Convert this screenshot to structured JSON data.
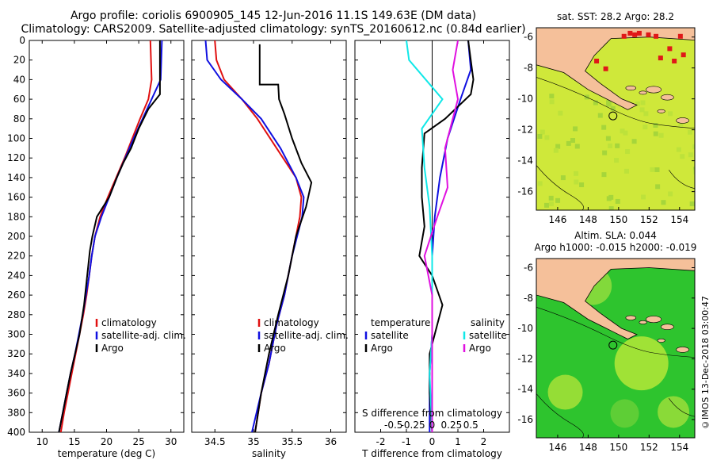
{
  "title_line1": "Argo profile: coriolis 6900905_145 12-Jun-2016 11.1S 149.63E (DM data)",
  "title_line2": "Climatology: CARS2009. Satellite-adjusted climatology: synTS_20160612.nc (0.84d earlier)",
  "colors": {
    "clim": "#e01010",
    "sat": "#1010e0",
    "argo": "#000000",
    "sat_salt": "#10e8e8",
    "argo_salt": "#e010e0",
    "land": "#f5c09a",
    "sea_sst": "#cfe83a",
    "sea_sla": "#2ec42e"
  },
  "chart_data": [
    {
      "type": "line",
      "name": "temperature",
      "xlabel": "temperature (deg C)",
      "ylabel": "",
      "xlim": [
        8,
        32
      ],
      "ylim": [
        400,
        0
      ],
      "xticks": [
        10,
        15,
        20,
        25,
        30
      ],
      "yticks": [
        0,
        20,
        40,
        60,
        80,
        100,
        120,
        140,
        160,
        180,
        200,
        220,
        240,
        260,
        280,
        300,
        320,
        340,
        360,
        380,
        400
      ],
      "legend": [
        "climatology",
        "satellite-adj. clim.",
        "Argo"
      ],
      "series": [
        {
          "name": "climatology",
          "color": "clim",
          "points": [
            [
              26.8,
              0
            ],
            [
              26.9,
              20
            ],
            [
              27.0,
              40
            ],
            [
              26.5,
              60
            ],
            [
              25.2,
              80
            ],
            [
              24.0,
              100
            ],
            [
              22.8,
              120
            ],
            [
              21.5,
              140
            ],
            [
              20.2,
              160
            ],
            [
              19.0,
              180
            ],
            [
              18.2,
              200
            ],
            [
              17.7,
              220
            ],
            [
              17.3,
              240
            ],
            [
              16.9,
              260
            ],
            [
              16.4,
              280
            ],
            [
              15.8,
              300
            ],
            [
              15.2,
              320
            ],
            [
              14.6,
              340
            ],
            [
              14.0,
              360
            ],
            [
              13.4,
              380
            ],
            [
              12.9,
              400
            ]
          ]
        },
        {
          "name": "satellite-adj. clim.",
          "color": "sat",
          "points": [
            [
              28.6,
              0
            ],
            [
              28.5,
              20
            ],
            [
              28.4,
              40
            ],
            [
              27.0,
              60
            ],
            [
              25.6,
              80
            ],
            [
              24.2,
              100
            ],
            [
              22.9,
              120
            ],
            [
              21.6,
              140
            ],
            [
              20.4,
              160
            ],
            [
              19.2,
              180
            ],
            [
              18.2,
              200
            ],
            [
              17.7,
              220
            ],
            [
              17.3,
              240
            ],
            [
              16.8,
              260
            ],
            [
              16.3,
              280
            ],
            [
              15.7,
              300
            ],
            [
              15.1,
              320
            ],
            [
              14.4,
              340
            ],
            [
              13.8,
              360
            ],
            [
              13.2,
              380
            ],
            [
              12.6,
              400
            ]
          ]
        },
        {
          "name": "Argo",
          "color": "argo",
          "points": [
            [
              28.3,
              0
            ],
            [
              28.3,
              20
            ],
            [
              28.3,
              40
            ],
            [
              28.3,
              55
            ],
            [
              26.5,
              70
            ],
            [
              25.0,
              90
            ],
            [
              23.8,
              110
            ],
            [
              22.6,
              125
            ],
            [
              21.6,
              140
            ],
            [
              20.4,
              160
            ],
            [
              18.5,
              180
            ],
            [
              17.8,
              200
            ],
            [
              17.4,
              215
            ],
            [
              17.0,
              240
            ],
            [
              16.5,
              270
            ],
            [
              15.8,
              300
            ],
            [
              15.1,
              320
            ],
            [
              14.4,
              340
            ],
            [
              13.8,
              360
            ],
            [
              13.2,
              380
            ],
            [
              12.6,
              400
            ]
          ]
        }
      ]
    },
    {
      "type": "line",
      "name": "salinity",
      "xlabel": "salinity",
      "xlim": [
        34.2,
        36.2
      ],
      "ylim": [
        400,
        0
      ],
      "xticks": [
        34.5,
        35,
        35.5,
        36
      ],
      "xtick_labels": [
        "34.5",
        "35",
        "35.5",
        "36"
      ],
      "legend": [
        "climatology",
        "satellite-adj. clim.",
        "Argo"
      ],
      "series": [
        {
          "name": "climatology",
          "color": "clim",
          "points": [
            [
              34.5,
              0
            ],
            [
              34.52,
              20
            ],
            [
              34.62,
              40
            ],
            [
              34.85,
              60
            ],
            [
              35.05,
              80
            ],
            [
              35.3,
              110
            ],
            [
              35.55,
              140
            ],
            [
              35.62,
              160
            ],
            [
              35.6,
              180
            ],
            [
              35.5,
              220
            ],
            [
              35.4,
              260
            ],
            [
              35.3,
              290
            ],
            [
              35.2,
              330
            ],
            [
              35.1,
              360
            ],
            [
              35.02,
              400
            ]
          ]
        },
        {
          "name": "satellite-adj. clim.",
          "color": "sat",
          "points": [
            [
              34.38,
              0
            ],
            [
              34.4,
              20
            ],
            [
              34.58,
              40
            ],
            [
              34.85,
              60
            ],
            [
              35.1,
              80
            ],
            [
              35.35,
              110
            ],
            [
              35.55,
              140
            ],
            [
              35.65,
              160
            ],
            [
              35.63,
              180
            ],
            [
              35.5,
              220
            ],
            [
              35.4,
              260
            ],
            [
              35.3,
              290
            ],
            [
              35.2,
              330
            ],
            [
              35.1,
              360
            ],
            [
              34.98,
              400
            ]
          ]
        },
        {
          "name": "Argo",
          "color": "argo",
          "points": [
            [
              35.08,
              4
            ],
            [
              35.08,
              45
            ],
            [
              35.32,
              45
            ],
            [
              35.33,
              60
            ],
            [
              35.4,
              75
            ],
            [
              35.5,
              100
            ],
            [
              35.62,
              125
            ],
            [
              35.75,
              145
            ],
            [
              35.68,
              170
            ],
            [
              35.55,
              200
            ],
            [
              35.45,
              240
            ],
            [
              35.32,
              280
            ],
            [
              35.2,
              320
            ],
            [
              35.1,
              360
            ],
            [
              35.02,
              400
            ]
          ]
        }
      ]
    },
    {
      "type": "line",
      "name": "difference from climatology",
      "xlabel": "T difference from climatology",
      "xlim": [
        -3,
        3
      ],
      "ylim": [
        400,
        0
      ],
      "xticks": [
        -2,
        -1,
        0,
        1,
        2
      ],
      "secondary_xlabel": "S difference from climatology",
      "secondary_ticks": [
        "-0.5",
        "-0.25",
        "0",
        "0.25",
        "0.5"
      ],
      "legend_left_title": "temperature",
      "legend_right_title": "salinity",
      "legend_left": [
        "satellite",
        "Argo"
      ],
      "legend_right": [
        "satellite",
        "Argo"
      ],
      "series": [
        {
          "name": "temperature satellite",
          "color": "sat",
          "points": [
            [
              1.4,
              0
            ],
            [
              1.5,
              30
            ],
            [
              1.1,
              60
            ],
            [
              0.6,
              100
            ],
            [
              0.3,
              140
            ],
            [
              0.1,
              180
            ],
            [
              0.0,
              220
            ],
            [
              0.0,
              260
            ],
            [
              0.0,
              300
            ],
            [
              -0.1,
              340
            ],
            [
              -0.1,
              400
            ]
          ]
        },
        {
          "name": "temperature Argo",
          "color": "argo",
          "points": [
            [
              1.4,
              0
            ],
            [
              1.6,
              40
            ],
            [
              1.5,
              55
            ],
            [
              0.5,
              80
            ],
            [
              -0.3,
              95
            ],
            [
              -0.4,
              130
            ],
            [
              -0.4,
              160
            ],
            [
              -0.3,
              190
            ],
            [
              -0.5,
              220
            ],
            [
              0.0,
              240
            ],
            [
              0.4,
              270
            ],
            [
              0.2,
              290
            ],
            [
              -0.1,
              320
            ],
            [
              -0.1,
              360
            ],
            [
              0.0,
              400
            ]
          ]
        },
        {
          "name": "salinity satellite",
          "color": "sat_salt",
          "points": [
            [
              -1.0,
              0
            ],
            [
              -0.9,
              20
            ],
            [
              0.4,
              60
            ],
            [
              -0.4,
              90
            ],
            [
              -0.3,
              130
            ],
            [
              -0.1,
              170
            ],
            [
              0.0,
              220
            ],
            [
              0.0,
              260
            ],
            [
              0.0,
              300
            ],
            [
              -0.1,
              340
            ],
            [
              0.0,
              400
            ]
          ]
        },
        {
          "name": "salinity Argo",
          "color": "argo_salt",
          "points": [
            [
              1.0,
              0
            ],
            [
              0.8,
              30
            ],
            [
              1.0,
              60
            ],
            [
              0.5,
              110
            ],
            [
              0.6,
              150
            ],
            [
              0.2,
              180
            ],
            [
              -0.3,
              220
            ],
            [
              0.0,
              260
            ],
            [
              0.0,
              300
            ],
            [
              0.0,
              340
            ],
            [
              0.0,
              400
            ]
          ]
        }
      ]
    }
  ],
  "map_sst": {
    "title": "sat. SST: 28.2 Argo: 28.2",
    "xticks": [
      "146",
      "148",
      "150",
      "152",
      "154"
    ],
    "yticks": [
      "-6",
      "-8",
      "-10",
      "-12",
      "-14",
      "-16"
    ]
  },
  "map_sla": {
    "title1": "Altim. SLA: 0.044",
    "title2": "Argo h1000: -0.015 h2000: -0.019",
    "xticks": [
      "146",
      "148",
      "150",
      "152",
      "154"
    ],
    "yticks": [
      "-6",
      "-8",
      "-10",
      "-12",
      "-14",
      "-16"
    ]
  },
  "imos_label": "©IMOS 13-Dec-2018 03:00:47"
}
